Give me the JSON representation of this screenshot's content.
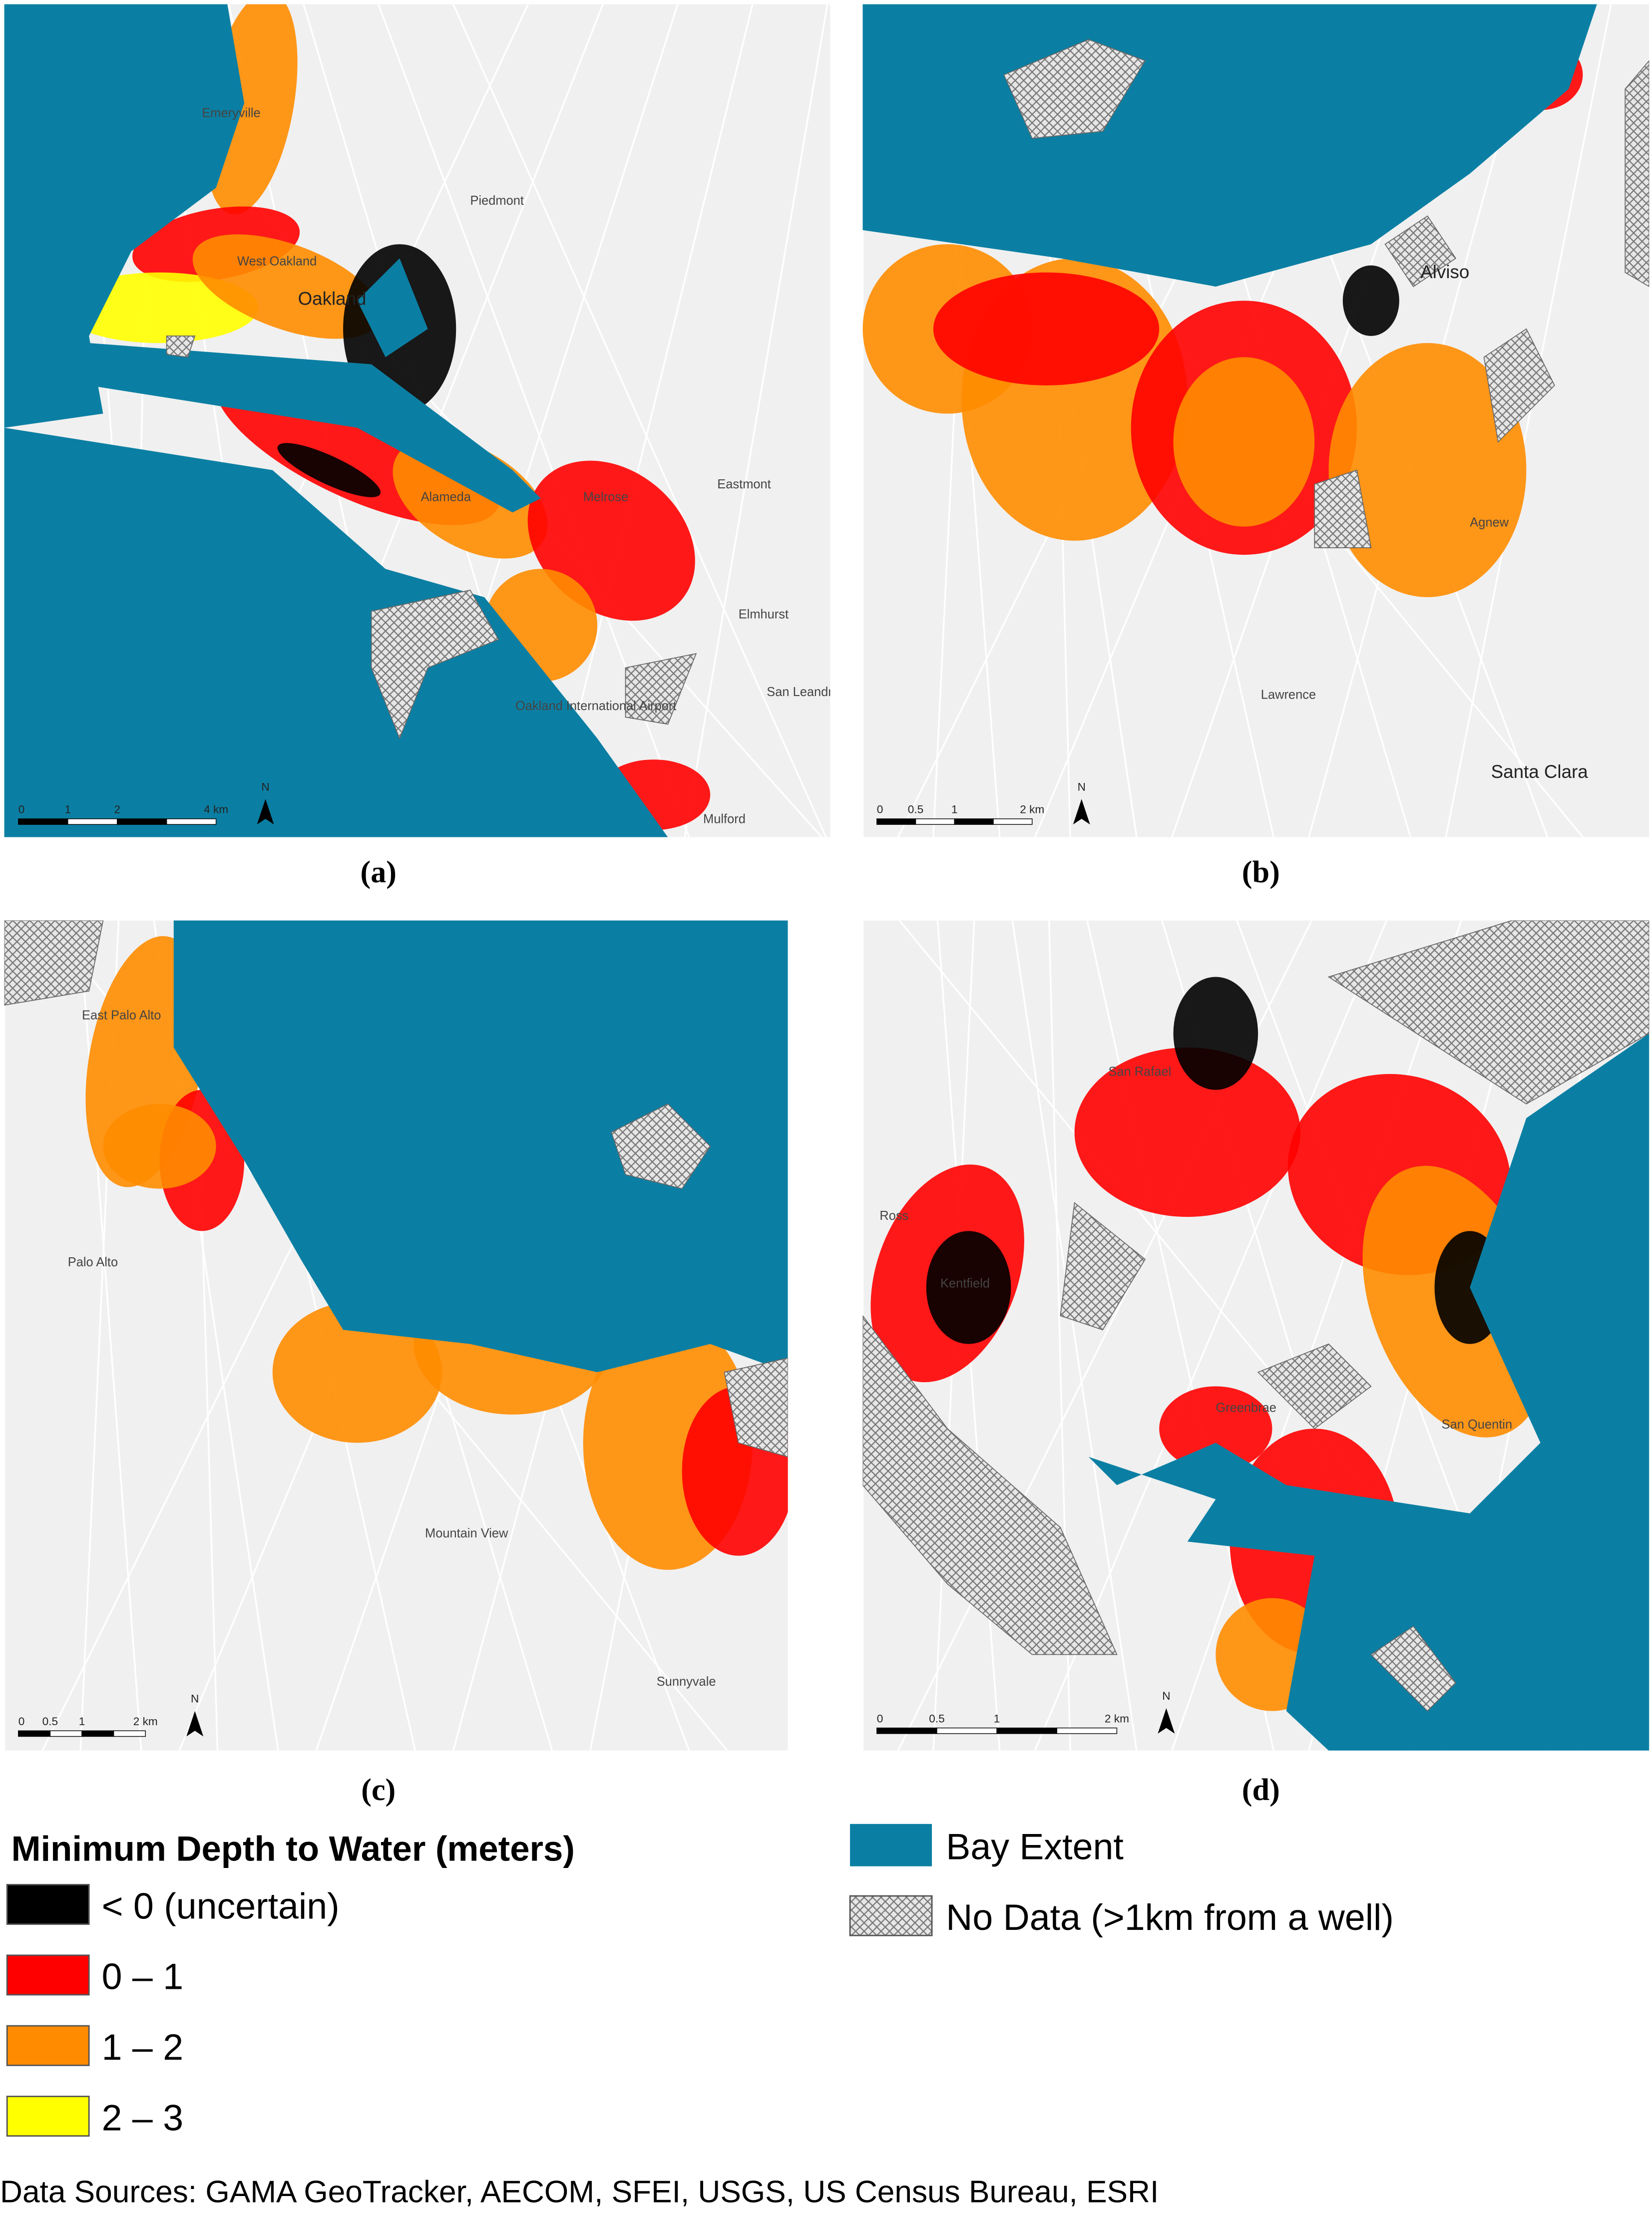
{
  "panels": [
    {
      "caption": "(a)",
      "places": [
        "Emeryville",
        "West Oakland",
        "Oakland",
        "Piedmont",
        "Alameda",
        "Melrose",
        "Eastmont",
        "Elmhurst",
        "Oakland International Airport",
        "San Leandro",
        "Mulford"
      ],
      "scale": [
        "0",
        "1",
        "2",
        "4 km"
      ],
      "north": "N"
    },
    {
      "caption": "(b)",
      "places": [
        "Alviso",
        "Agnew",
        "Lawrence",
        "Santa Clara"
      ],
      "scale": [
        "0",
        "0.5",
        "1",
        "2 km"
      ],
      "north": "N"
    },
    {
      "caption": "(c)",
      "places": [
        "East Palo Alto",
        "Palo Alto",
        "Mountain View",
        "Sunnyvale"
      ],
      "scale": [
        "0",
        "0.5",
        "1",
        "2 km"
      ],
      "north": "N"
    },
    {
      "caption": "(d)",
      "places": [
        "San Rafael",
        "Ross",
        "Kentfield",
        "Greenbrae",
        "San Quentin"
      ],
      "scale": [
        "0",
        "0.5",
        "1",
        "2 km"
      ],
      "north": "N"
    }
  ],
  "legend": {
    "title": "Minimum Depth to Water (meters)",
    "items": [
      {
        "label": "< 0 (uncertain)",
        "color": "#000000"
      },
      {
        "label": "0 – 1",
        "color": "#ff0000"
      },
      {
        "label": "1 – 2",
        "color": "#ff8c00"
      },
      {
        "label": "2 – 3",
        "color": "#ffff00"
      }
    ],
    "bay": {
      "label": "Bay Extent",
      "color": "#0b7fa3"
    },
    "nodata": {
      "label": "No Data (>1km from a well)"
    }
  },
  "source": "Data Sources: GAMA GeoTracker, AECOM, SFEI, USGS, US Census Bureau, ESRI"
}
